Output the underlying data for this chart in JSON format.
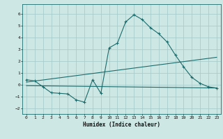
{
  "bg_color": "#cde8e4",
  "grid_color": "#a8ccca",
  "line_color": "#1a6b6b",
  "xlabel": "Humidex (Indice chaleur)",
  "xlim": [
    -0.5,
    23.5
  ],
  "ylim": [
    -2.5,
    6.8
  ],
  "xticks": [
    0,
    1,
    2,
    3,
    4,
    5,
    6,
    7,
    8,
    9,
    10,
    11,
    12,
    13,
    14,
    15,
    16,
    17,
    18,
    19,
    20,
    21,
    22,
    23
  ],
  "yticks": [
    -2,
    -1,
    0,
    1,
    2,
    3,
    4,
    5,
    6
  ],
  "line1_x": [
    0,
    1,
    2,
    3,
    4,
    5,
    6,
    7,
    8,
    9,
    10,
    11,
    12,
    13,
    14,
    15,
    16,
    17,
    18,
    19,
    20,
    21,
    22,
    23
  ],
  "line1_y": [
    0.4,
    0.3,
    -0.2,
    -0.7,
    -0.75,
    -0.8,
    -1.3,
    -1.5,
    0.4,
    -0.75,
    3.1,
    3.5,
    5.3,
    5.9,
    5.5,
    4.8,
    4.3,
    3.6,
    2.5,
    1.5,
    0.6,
    0.1,
    -0.2,
    -0.3
  ],
  "line2_x": [
    0,
    23
  ],
  "line2_y": [
    0.2,
    2.3
  ],
  "line3_x": [
    0,
    23
  ],
  "line3_y": [
    -0.1,
    -0.3
  ]
}
